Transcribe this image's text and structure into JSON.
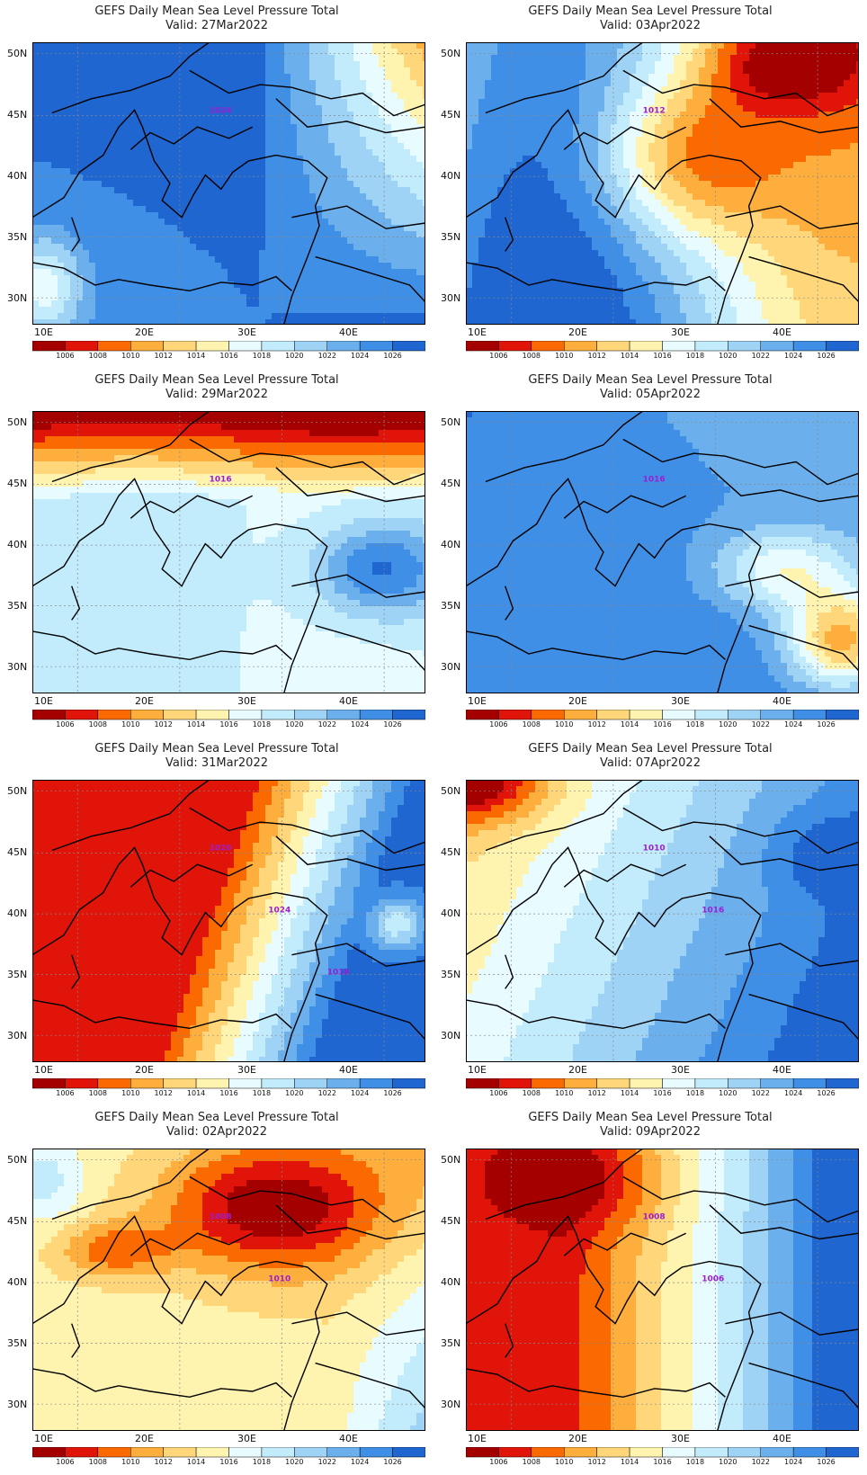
{
  "product_title": "GEFS Daily Mean Sea Level Pressure Total",
  "valid_prefix": "Valid:",
  "lat_labels": [
    "50N",
    "45N",
    "40N",
    "35N",
    "30N"
  ],
  "lon_labels": [
    "10E",
    "20E",
    "30E",
    "40E"
  ],
  "colorbar_labels": [
    "1006",
    "1008",
    "1010",
    "1012",
    "1014",
    "1016",
    "1018",
    "1020",
    "1022",
    "1024",
    "1026"
  ],
  "colorbar_colors": [
    "#a50000",
    "#e01408",
    "#fa6a00",
    "#fdae3c",
    "#ffd77a",
    "#fff3b0",
    "#e8fbff",
    "#c2ecfb",
    "#9fd3f5",
    "#6bb0ec",
    "#3f8fe6",
    "#1f66d1"
  ],
  "panels": [
    {
      "valid": "27Mar2022",
      "regime": "high",
      "contour_labels": [
        "1024"
      ]
    },
    {
      "valid": "03Apr2022",
      "regime": "mixed-low-east",
      "contour_labels": [
        "1012"
      ]
    },
    {
      "valid": "29Mar2022",
      "regime": "moderate",
      "contour_labels": [
        "1016"
      ]
    },
    {
      "valid": "05Apr2022",
      "regime": "high-west",
      "contour_labels": [
        "1016"
      ]
    },
    {
      "valid": "31Mar2022",
      "regime": "low-west",
      "contour_labels": [
        "1020",
        "1024",
        "1016"
      ]
    },
    {
      "valid": "07Apr2022",
      "regime": "high-east",
      "contour_labels": [
        "1010",
        "1016"
      ]
    },
    {
      "valid": "02Apr2022",
      "regime": "low-north",
      "contour_labels": [
        "1008",
        "1010"
      ]
    },
    {
      "valid": "09Apr2022",
      "regime": "low-west2",
      "contour_labels": [
        "1008",
        "1006"
      ]
    }
  ]
}
